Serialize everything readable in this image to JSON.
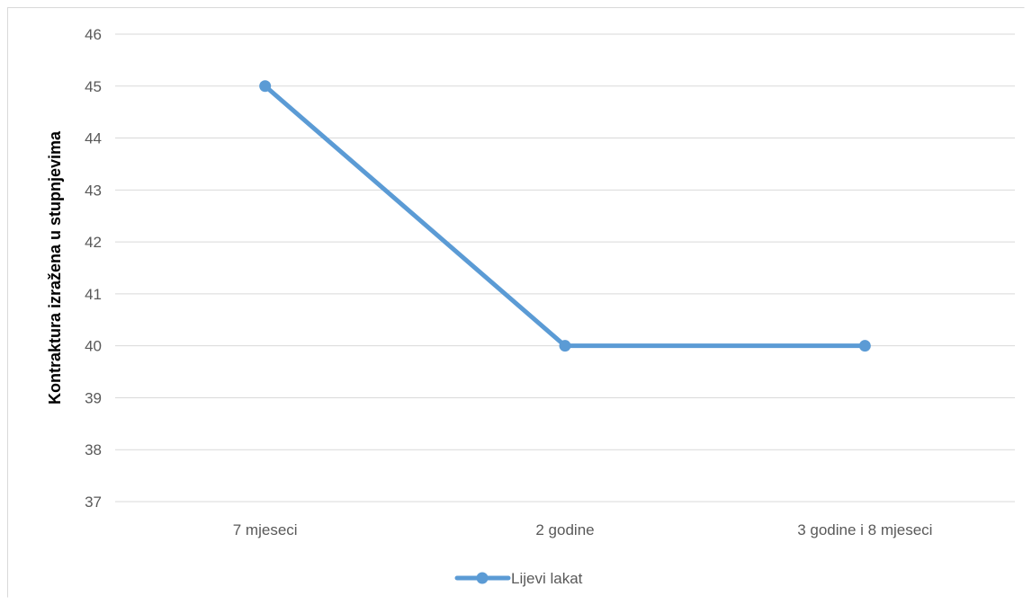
{
  "chart_data": {
    "type": "line",
    "categories": [
      "7 mjeseci",
      "2 godine",
      "3 godine i 8 mjeseci"
    ],
    "series": [
      {
        "name": "Lijevi lakat",
        "values": [
          45,
          40,
          40
        ],
        "color": "#5b9bd5"
      }
    ],
    "title": "",
    "xlabel": "",
    "ylabel": "Kontraktura izražena u stupnjevima",
    "ylim": [
      37,
      46
    ],
    "yticks": [
      37,
      38,
      39,
      40,
      41,
      42,
      43,
      44,
      45,
      46
    ],
    "grid": true,
    "legend": "bottom-center",
    "colors": {
      "gridline": "#d9d9d9",
      "tick_text": "#595959"
    }
  }
}
